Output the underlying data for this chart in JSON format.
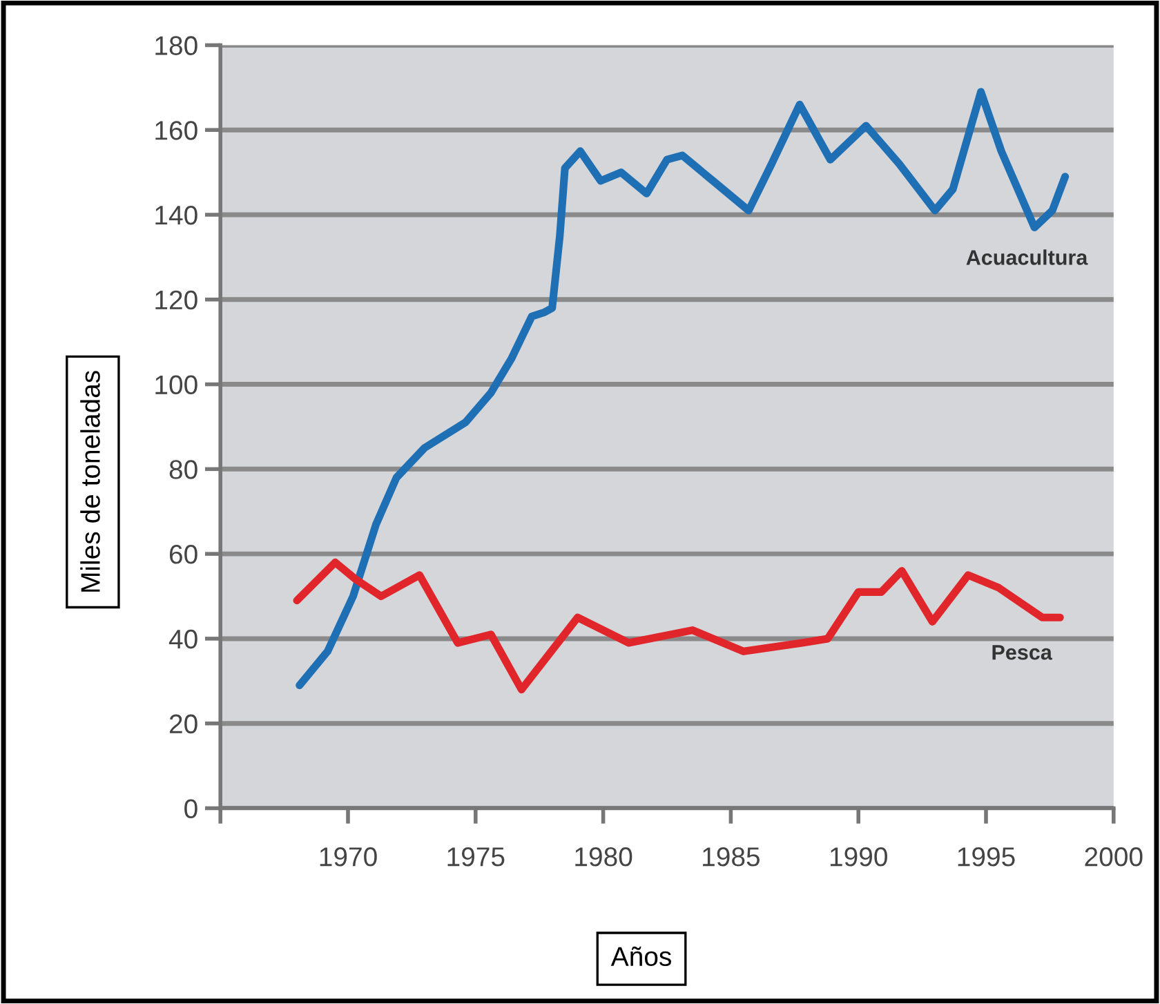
{
  "chart_data": {
    "type": "line",
    "xlabel": "Años",
    "ylabel": "Miles de toneladas",
    "xlim": [
      1965,
      2000
    ],
    "xticks": [
      {
        "value": 1965,
        "label": null
      },
      1970,
      1975,
      1980,
      1985,
      1990,
      1995,
      2000
    ],
    "ylim": [
      0,
      180
    ],
    "yticks": [
      0,
      20,
      40,
      60,
      80,
      100,
      120,
      140,
      160,
      180
    ],
    "grid": "y",
    "legend": false,
    "marker": "none",
    "line_style": "solid",
    "series": [
      {
        "name": "Acuacultura",
        "color": "#1f6fb5",
        "x": [
          1968.1,
          1969.2,
          1970.2,
          1971.1,
          1971.9,
          1973.0,
          1974.6,
          1975.6,
          1976.4,
          1977.2,
          1977.7,
          1978.0,
          1978.3,
          1978.5,
          1979.1,
          1979.9,
          1980.7,
          1981.7,
          1982.5,
          1983.1,
          1984.3,
          1985.7,
          1986.6,
          1987.7,
          1988.9,
          1990.3,
          1991.6,
          1993.0,
          1993.7,
          1994.8,
          1995.6,
          1996.9,
          1997.6,
          1998.1
        ],
        "values": [
          29,
          37,
          50,
          67,
          78,
          85,
          91,
          98,
          106,
          116,
          117,
          118,
          135,
          151,
          155,
          148,
          150,
          145,
          153,
          154,
          148,
          141,
          152,
          166,
          153,
          161,
          152,
          141,
          146,
          169,
          155,
          137,
          141,
          149
        ]
      },
      {
        "name": "Pesca",
        "color": "#e0262b",
        "x": [
          1968.0,
          1969.5,
          1970.3,
          1971.3,
          1972.8,
          1974.3,
          1975.6,
          1976.8,
          1979.0,
          1981.0,
          1983.5,
          1985.5,
          1987.8,
          1988.8,
          1990.0,
          1990.9,
          1991.7,
          1992.9,
          1994.3,
          1995.5,
          1997.2,
          1997.9
        ],
        "values": [
          49,
          58,
          54,
          50,
          55,
          39,
          41,
          28,
          45,
          39,
          42,
          37,
          39,
          40,
          51,
          51,
          56,
          44,
          55,
          52,
          45,
          45
        ]
      }
    ]
  }
}
